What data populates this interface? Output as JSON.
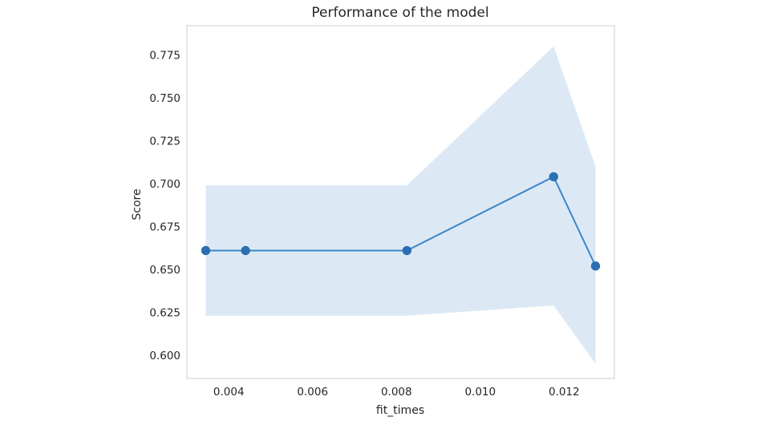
{
  "chart_data": {
    "type": "line",
    "title": "Performance of the model",
    "xlabel": "fit_times",
    "ylabel": "Score",
    "x": [
      0.00345,
      0.0044,
      0.00825,
      0.01175,
      0.01275
    ],
    "series": [
      {
        "values": [
          0.661,
          0.661,
          0.661,
          0.704,
          0.652
        ],
        "band_lower": [
          0.623,
          0.623,
          0.623,
          0.629,
          0.595
        ],
        "band_upper": [
          0.699,
          0.699,
          0.699,
          0.78,
          0.71
        ],
        "color": "#3a86c8",
        "marker_color": "#2b6fb2",
        "band_color": "#dce9f5"
      }
    ],
    "xlim": [
      0.003,
      0.0132
    ],
    "ylim": [
      0.5865,
      0.792
    ],
    "x_ticks": [
      0.004,
      0.006,
      0.008,
      0.01,
      0.012
    ],
    "x_tick_labels": [
      "0.004",
      "0.006",
      "0.008",
      "0.010",
      "0.012"
    ],
    "y_ticks": [
      0.6,
      0.625,
      0.65,
      0.675,
      0.7,
      0.725,
      0.75,
      0.775
    ],
    "y_tick_labels": [
      "0.600",
      "0.625",
      "0.650",
      "0.675",
      "0.700",
      "0.725",
      "0.750",
      "0.775"
    ],
    "grid": false,
    "legend": "none",
    "frame_color": "#cccccc"
  }
}
